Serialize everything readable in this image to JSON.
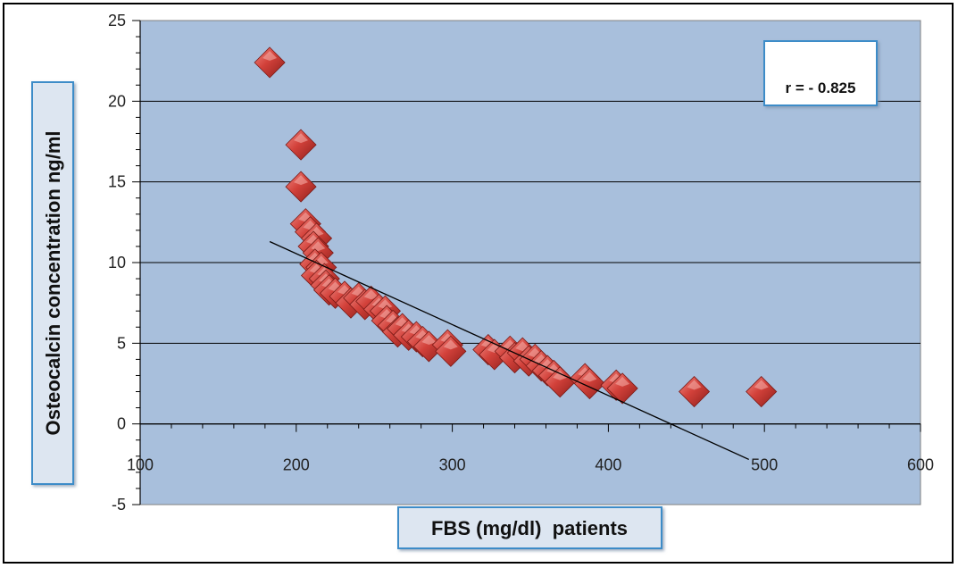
{
  "chart_data": {
    "type": "scatter",
    "xlabel": "FBS (mg/dl)  patients",
    "ylabel": "Osteocalcin concentration ng/ml",
    "xlim": [
      100,
      600
    ],
    "ylim": [
      -5,
      25
    ],
    "xticks": [
      100,
      200,
      300,
      400,
      500,
      600
    ],
    "yticks": [
      -5,
      0,
      5,
      10,
      15,
      20,
      25
    ],
    "grid": "horizontal",
    "legend": "none",
    "annotation": "r = - 0.825",
    "marker_color": "#c9302c",
    "plot_background": "#a8bfdc",
    "points": [
      {
        "x": 183,
        "y": 22.4
      },
      {
        "x": 203,
        "y": 17.3
      },
      {
        "x": 203,
        "y": 14.7
      },
      {
        "x": 206,
        "y": 12.4
      },
      {
        "x": 209,
        "y": 11.9
      },
      {
        "x": 213,
        "y": 11.5
      },
      {
        "x": 211,
        "y": 11.0
      },
      {
        "x": 214,
        "y": 10.6
      },
      {
        "x": 212,
        "y": 9.9
      },
      {
        "x": 216,
        "y": 9.7
      },
      {
        "x": 213,
        "y": 9.2
      },
      {
        "x": 218,
        "y": 9.0
      },
      {
        "x": 219,
        "y": 8.6
      },
      {
        "x": 221,
        "y": 8.3
      },
      {
        "x": 225,
        "y": 8.1
      },
      {
        "x": 231,
        "y": 7.9
      },
      {
        "x": 235,
        "y": 7.5
      },
      {
        "x": 240,
        "y": 7.8
      },
      {
        "x": 244,
        "y": 7.4
      },
      {
        "x": 248,
        "y": 7.6
      },
      {
        "x": 253,
        "y": 7.1
      },
      {
        "x": 257,
        "y": 7.0
      },
      {
        "x": 258,
        "y": 6.4
      },
      {
        "x": 262,
        "y": 6.1
      },
      {
        "x": 265,
        "y": 5.7
      },
      {
        "x": 268,
        "y": 5.9
      },
      {
        "x": 272,
        "y": 5.5
      },
      {
        "x": 277,
        "y": 5.4
      },
      {
        "x": 281,
        "y": 5.1
      },
      {
        "x": 285,
        "y": 4.8
      },
      {
        "x": 297,
        "y": 4.9
      },
      {
        "x": 299,
        "y": 4.5
      },
      {
        "x": 323,
        "y": 4.6
      },
      {
        "x": 327,
        "y": 4.3
      },
      {
        "x": 337,
        "y": 4.5
      },
      {
        "x": 340,
        "y": 4.1
      },
      {
        "x": 345,
        "y": 4.4
      },
      {
        "x": 349,
        "y": 3.9
      },
      {
        "x": 353,
        "y": 4.0
      },
      {
        "x": 357,
        "y": 3.6
      },
      {
        "x": 361,
        "y": 3.3
      },
      {
        "x": 365,
        "y": 3.0
      },
      {
        "x": 369,
        "y": 2.6
      },
      {
        "x": 385,
        "y": 2.8
      },
      {
        "x": 388,
        "y": 2.5
      },
      {
        "x": 405,
        "y": 2.4
      },
      {
        "x": 409,
        "y": 2.2
      },
      {
        "x": 455,
        "y": 2.0
      },
      {
        "x": 498,
        "y": 2.0
      }
    ],
    "trendline": {
      "x": [
        183,
        490
      ],
      "y": [
        11.3,
        -2.2
      ]
    }
  }
}
